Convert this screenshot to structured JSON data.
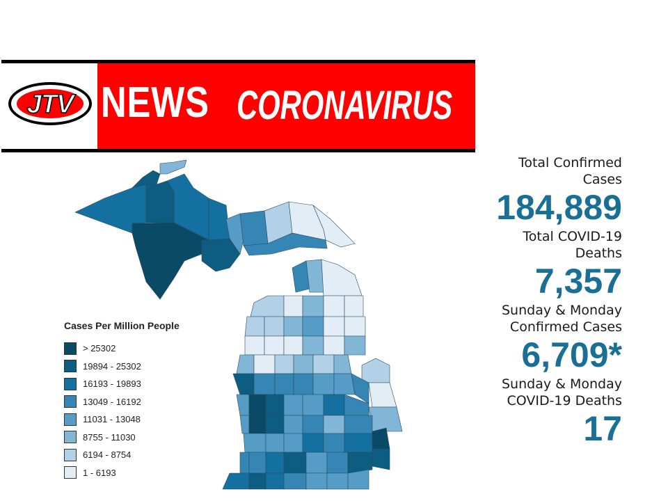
{
  "banner": {
    "logo_text": "JTV",
    "news_text": "NEWS",
    "topic_text": "CORONAVIRUS"
  },
  "stats": [
    {
      "label_line1": "Total Confirmed",
      "label_line2": "Cases",
      "value": "184,889"
    },
    {
      "label_line1": "Total COVID-19",
      "label_line2": "Deaths",
      "value": "7,357"
    },
    {
      "label_line1": "Sunday & Monday",
      "label_line2": "Confirmed Cases",
      "value": "6,709*"
    },
    {
      "label_line1": "Sunday & Monday",
      "label_line2": "COVID-19 Deaths",
      "value": "17"
    }
  ],
  "legend": {
    "title": "Cases Per Million People",
    "items": [
      {
        "label": "> 25302",
        "color": "#0b4a66"
      },
      {
        "label": "19894 - 25302",
        "color": "#0d5c82"
      },
      {
        "label": "16193 - 19893",
        "color": "#1470a0"
      },
      {
        "label": "13049 - 16192",
        "color": "#3586b5"
      },
      {
        "label": "11031 - 13048",
        "color": "#559dc6"
      },
      {
        "label": "8755 - 11030",
        "color": "#82b6d6"
      },
      {
        "label": "6194 - 8754",
        "color": "#b3d1e6"
      },
      {
        "label": "1 - 6193",
        "color": "#e3edf5"
      }
    ]
  },
  "colors": {
    "banner_red": "#ff0000",
    "stat_value": "#1a6f96"
  }
}
